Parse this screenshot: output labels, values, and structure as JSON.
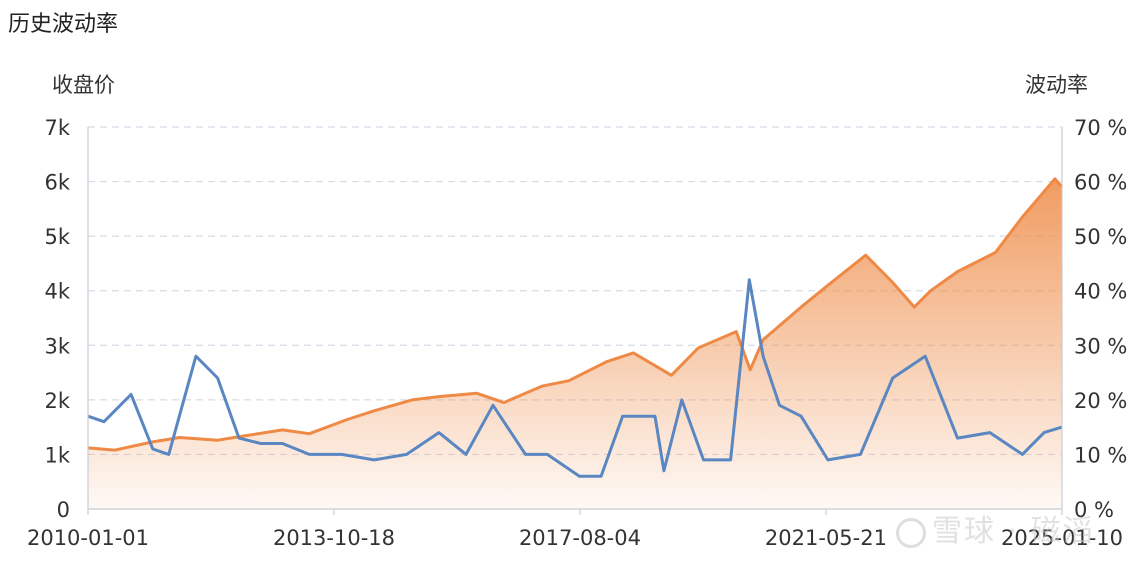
{
  "title": "历史波动率",
  "chart_data": {
    "type": "line",
    "left_axis": {
      "label": "收盘价",
      "ticks": [
        "0",
        "1k",
        "2k",
        "3k",
        "4k",
        "5k",
        "6k",
        "7k"
      ],
      "ylim": [
        0,
        7000
      ]
    },
    "right_axis": {
      "label": "波动率",
      "ticks": [
        "0 %",
        "10 %",
        "20 %",
        "30 %",
        "40 %",
        "50 %",
        "60 %",
        "70 %"
      ],
      "ylim": [
        0,
        70
      ]
    },
    "x_ticks": [
      "2010-01-01",
      "2013-10-18",
      "2017-08-04",
      "2021-05-21",
      "2025-01-10"
    ],
    "xlim": [
      "2010-01-01",
      "2025-01-10"
    ],
    "grid": true,
    "series": [
      {
        "color": "#ee8a45",
        "area": true,
        "axis": "left",
        "x": [
          "2010-01-01",
          "2010-06-01",
          "2011-01-01",
          "2011-06-01",
          "2012-01-01",
          "2012-06-01",
          "2013-01-01",
          "2013-06-01",
          "2014-01-01",
          "2014-06-01",
          "2015-01-01",
          "2015-06-01",
          "2016-01-01",
          "2016-06-01",
          "2017-01-01",
          "2017-06-01",
          "2018-01-01",
          "2018-06-01",
          "2019-01-01",
          "2019-06-01",
          "2020-01-01",
          "2020-03-20",
          "2020-06-01",
          "2021-01-01",
          "2021-06-01",
          "2021-12-31",
          "2022-06-01",
          "2022-10-01",
          "2023-01-01",
          "2023-06-01",
          "2024-01-01",
          "2024-06-01",
          "2024-12-01",
          "2025-01-10"
        ],
        "values": [
          1120,
          1080,
          1230,
          1310,
          1260,
          1340,
          1450,
          1380,
          1640,
          1800,
          2000,
          2060,
          2120,
          1950,
          2250,
          2350,
          2700,
          2860,
          2450,
          2950,
          3250,
          2550,
          3100,
          3700,
          4100,
          4650,
          4150,
          3700,
          4000,
          4350,
          4700,
          5350,
          6050,
          5900
        ]
      },
      {
        "color": "#5a87c2",
        "area": false,
        "axis": "right",
        "x": [
          "2010-01-01",
          "2010-04-01",
          "2010-09-01",
          "2011-01-01",
          "2011-04-01",
          "2011-09-01",
          "2012-01-01",
          "2012-05-01",
          "2012-09-01",
          "2013-01-01",
          "2013-06-01",
          "2013-12-01",
          "2014-06-01",
          "2014-12-01",
          "2015-06-01",
          "2015-11-01",
          "2016-04-01",
          "2016-10-01",
          "2017-02-01",
          "2017-08-01",
          "2017-12-01",
          "2018-04-01",
          "2018-10-01",
          "2018-11-20",
          "2019-03-01",
          "2019-07-01",
          "2019-12-01",
          "2020-03-15",
          "2020-06-01",
          "2020-09-01",
          "2021-01-01",
          "2021-06-01",
          "2021-12-01",
          "2022-06-01",
          "2022-12-01",
          "2023-06-01",
          "2023-12-01",
          "2024-06-01",
          "2024-10-01",
          "2025-01-10"
        ],
        "values": [
          17,
          16,
          21,
          11,
          10,
          28,
          24,
          13,
          12,
          12,
          10,
          10,
          9,
          10,
          14,
          10,
          19,
          10,
          10,
          6,
          6,
          17,
          17,
          7,
          20,
          9,
          9,
          42,
          28,
          19,
          17,
          9,
          10,
          24,
          28,
          13,
          14,
          10,
          14,
          15
        ]
      }
    ]
  },
  "watermark": "雪球 · 磁滔"
}
